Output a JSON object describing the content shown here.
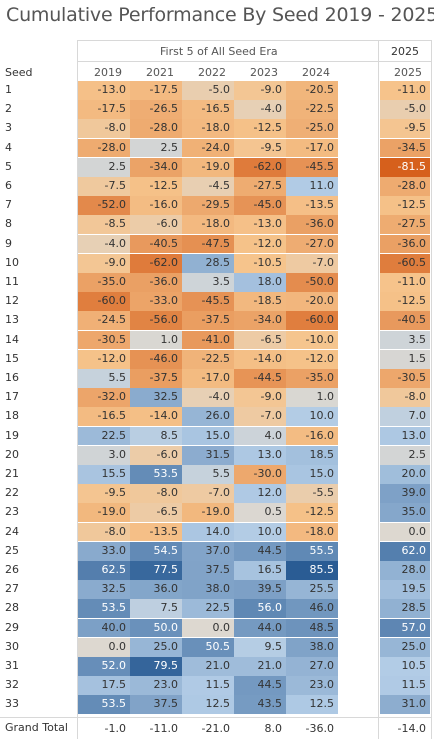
{
  "title": "Cumulative Performance By Seed 2019 - 2025",
  "chart_data": {
    "type": "table",
    "group_headers": [
      "First 5 of All Seed Era",
      "2025"
    ],
    "row_header": "Seed",
    "columns": [
      "2019",
      "2021",
      "2022",
      "2023",
      "2024",
      "2025"
    ],
    "rows": [
      {
        "seed": "1",
        "values": [
          "-13.0",
          "-17.5",
          "-5.0",
          "-9.0",
          "-20.5",
          "-11.0"
        ]
      },
      {
        "seed": "2",
        "values": [
          "-17.5",
          "-26.5",
          "-16.5",
          "-4.0",
          "-22.5",
          "-5.0"
        ]
      },
      {
        "seed": "3",
        "values": [
          "-8.0",
          "-28.0",
          "-18.0",
          "-12.5",
          "-25.0",
          "-9.5"
        ]
      },
      {
        "seed": "4",
        "values": [
          "-28.0",
          "2.5",
          "-24.0",
          "-9.5",
          "-17.0",
          "-34.5"
        ]
      },
      {
        "seed": "5",
        "values": [
          "2.5",
          "-34.0",
          "-19.0",
          "-62.0",
          "-45.5",
          "-81.5"
        ]
      },
      {
        "seed": "6",
        "values": [
          "-7.5",
          "-12.5",
          "-4.5",
          "-27.5",
          "11.0",
          "-28.0"
        ]
      },
      {
        "seed": "7",
        "values": [
          "-52.0",
          "-16.0",
          "-29.5",
          "-45.0",
          "-13.5",
          "-12.5"
        ]
      },
      {
        "seed": "8",
        "values": [
          "-8.5",
          "-6.0",
          "-18.0",
          "-13.0",
          "-36.0",
          "-27.5"
        ]
      },
      {
        "seed": "9",
        "values": [
          "-4.0",
          "-40.5",
          "-47.5",
          "-12.0",
          "-27.0",
          "-36.0"
        ]
      },
      {
        "seed": "10",
        "values": [
          "-9.0",
          "-62.0",
          "28.5",
          "-10.5",
          "-7.0",
          "-60.5"
        ]
      },
      {
        "seed": "11",
        "values": [
          "-35.0",
          "-36.0",
          "3.5",
          "18.0",
          "-50.0",
          "-11.0"
        ]
      },
      {
        "seed": "12",
        "values": [
          "-60.0",
          "-33.0",
          "-45.5",
          "-18.5",
          "-20.0",
          "-12.5"
        ]
      },
      {
        "seed": "13",
        "values": [
          "-24.5",
          "-56.0",
          "-37.5",
          "-34.0",
          "-60.0",
          "-40.5"
        ]
      },
      {
        "seed": "14",
        "values": [
          "-30.5",
          "1.0",
          "-41.0",
          "-6.5",
          "-10.0",
          "3.5"
        ]
      },
      {
        "seed": "15",
        "values": [
          "-12.0",
          "-46.0",
          "-22.5",
          "-14.0",
          "-12.0",
          "1.5"
        ]
      },
      {
        "seed": "16",
        "values": [
          "5.5",
          "-37.5",
          "-17.0",
          "-44.5",
          "-35.0",
          "-30.5"
        ]
      },
      {
        "seed": "17",
        "values": [
          "-32.0",
          "32.5",
          "-4.0",
          "-9.0",
          "1.0",
          "-8.0"
        ]
      },
      {
        "seed": "18",
        "values": [
          "-16.5",
          "-14.0",
          "26.0",
          "-7.0",
          "10.0",
          "7.0"
        ]
      },
      {
        "seed": "19",
        "values": [
          "22.5",
          "8.5",
          "15.0",
          "4.0",
          "-16.0",
          "13.0"
        ]
      },
      {
        "seed": "20",
        "values": [
          "3.0",
          "-6.0",
          "31.5",
          "13.0",
          "18.5",
          "2.5"
        ]
      },
      {
        "seed": "21",
        "values": [
          "15.5",
          "53.5",
          "5.5",
          "-30.0",
          "15.0",
          "20.0"
        ]
      },
      {
        "seed": "22",
        "values": [
          "-9.5",
          "-8.0",
          "-7.0",
          "12.0",
          "-5.5",
          "39.0"
        ]
      },
      {
        "seed": "23",
        "values": [
          "-19.0",
          "-6.5",
          "-19.0",
          "0.5",
          "-12.5",
          "35.0"
        ]
      },
      {
        "seed": "24",
        "values": [
          "-8.0",
          "-13.5",
          "14.0",
          "10.0",
          "-18.0",
          "0.0"
        ]
      },
      {
        "seed": "25",
        "values": [
          "33.0",
          "54.5",
          "37.0",
          "44.5",
          "55.5",
          "62.0"
        ]
      },
      {
        "seed": "26",
        "values": [
          "62.5",
          "77.5",
          "37.5",
          "16.5",
          "85.5",
          "28.0"
        ]
      },
      {
        "seed": "27",
        "values": [
          "32.5",
          "36.0",
          "38.0",
          "39.5",
          "25.5",
          "19.5"
        ]
      },
      {
        "seed": "28",
        "values": [
          "53.5",
          "7.5",
          "22.5",
          "56.0",
          "46.0",
          "28.5"
        ]
      },
      {
        "seed": "29",
        "values": [
          "40.0",
          "50.0",
          "0.0",
          "44.0",
          "48.5",
          "57.0"
        ]
      },
      {
        "seed": "30",
        "values": [
          "0.0",
          "25.0",
          "50.5",
          "9.5",
          "38.0",
          "25.0"
        ]
      },
      {
        "seed": "31",
        "values": [
          "52.0",
          "79.5",
          "21.0",
          "21.0",
          "27.0",
          "10.5"
        ]
      },
      {
        "seed": "32",
        "values": [
          "17.5",
          "23.0",
          "11.5",
          "44.5",
          "23.0",
          "11.5"
        ]
      },
      {
        "seed": "33",
        "values": [
          "53.5",
          "37.5",
          "12.5",
          "43.5",
          "12.5",
          "31.0"
        ]
      }
    ],
    "total_row": {
      "label": "Grand Total",
      "values": [
        "-1.0",
        "-11.0",
        "-21.0",
        "8.0",
        "-36.0",
        "-14.0"
      ]
    },
    "colors": {
      "negative": "#d45a16",
      "neutral": "#ddd8d0",
      "positive": "#2a5c94"
    },
    "color_range": [
      -85.5,
      85.5
    ]
  }
}
